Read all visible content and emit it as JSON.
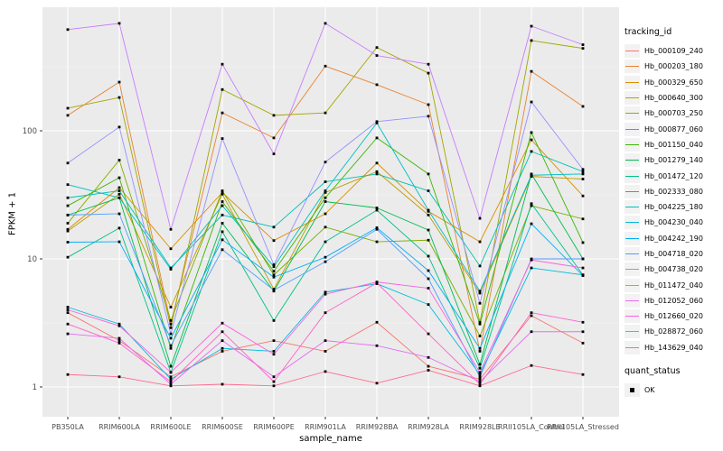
{
  "chart_data": {
    "type": "line",
    "title": "",
    "xlabel": "sample_name",
    "ylabel": "FPKM + 1",
    "y_scale": "log10",
    "y_ticks": [
      1,
      10,
      100
    ],
    "y_minor": [
      3.162,
      31.62,
      316.2
    ],
    "ylim": [
      0.6,
      900
    ],
    "grid": true,
    "legend_position": "right",
    "legend_title": "tracking_id",
    "quant_legend": {
      "title": "quant_status",
      "items": [
        "OK"
      ]
    },
    "categories": [
      "PB350LA",
      "RRIM600LA",
      "RRIM600LE",
      "RRIM600SE",
      "RRIM600PE",
      "RRIM901LA",
      "RRIM928BA",
      "RRIM928LA",
      "RRIM928LE",
      "RRII105LA_Control",
      "RRII105LA_Stressed"
    ],
    "series": [
      {
        "name": "Hb_000109_240",
        "color": "#F8766D",
        "values": [
          3.8,
          2.3,
          1.2,
          1.9,
          2.3,
          1.9,
          3.2,
          1.45,
          1.15,
          3.6,
          2.2
        ]
      },
      {
        "name": "Hb_000203_180",
        "color": "#EA8331",
        "values": [
          132,
          240,
          3.1,
          138,
          88,
          320,
          229,
          160,
          1.9,
          291,
          155
        ]
      },
      {
        "name": "Hb_000329_650",
        "color": "#D89000",
        "values": [
          17,
          36,
          12,
          33,
          13.9,
          22.5,
          56,
          23.5,
          13.6,
          85,
          31
        ]
      },
      {
        "name": "Hb_000640_300",
        "color": "#C09B00",
        "values": [
          16.5,
          32,
          4.2,
          32,
          5.8,
          33,
          48,
          22,
          5.4,
          44,
          42
        ]
      },
      {
        "name": "Hb_000703_250",
        "color": "#A3A500",
        "values": [
          150,
          182,
          2.9,
          210,
          132,
          138,
          447,
          282,
          3.2,
          507,
          440
        ]
      },
      {
        "name": "Hb_000877_060",
        "color": "#7CAE00",
        "values": [
          19,
          59,
          3.3,
          34,
          7.5,
          17.7,
          13.6,
          14,
          2.5,
          26,
          20.5
        ]
      },
      {
        "name": "Hb_001150_040",
        "color": "#39B600",
        "values": [
          26,
          43,
          2.0,
          28,
          8.0,
          30,
          88,
          46,
          3.1,
          97,
          13.4
        ]
      },
      {
        "name": "Hb_001279_140",
        "color": "#00BB4E",
        "values": [
          22,
          30,
          1.45,
          19,
          5.6,
          28,
          25,
          16.8,
          1.5,
          46,
          10
        ]
      },
      {
        "name": "Hb_001472_120",
        "color": "#00C087",
        "values": [
          10.3,
          17.4,
          1.3,
          16.3,
          3.3,
          13.6,
          24,
          10.5,
          1.4,
          27,
          7.5
        ]
      },
      {
        "name": "Hb_002333_080",
        "color": "#00C0B2",
        "values": [
          30,
          34,
          8.5,
          22,
          17.7,
          40,
          46,
          34,
          8.8,
          69,
          48
        ]
      },
      {
        "name": "Hb_004225_180",
        "color": "#00BFC4",
        "values": [
          38,
          30,
          8.3,
          26,
          8.7,
          34,
          115,
          24,
          5.6,
          45,
          46
        ]
      },
      {
        "name": "Hb_004230_040",
        "color": "#00BBDC",
        "values": [
          4.2,
          3.1,
          1.15,
          2.0,
          1.9,
          5.5,
          6.4,
          4.4,
          1.25,
          8.5,
          7.5
        ]
      },
      {
        "name": "Hb_004242_190",
        "color": "#00B0F6",
        "values": [
          13.5,
          13.6,
          2.4,
          14.1,
          7.2,
          10.3,
          17.5,
          8.1,
          2.0,
          18.8,
          7.4
        ]
      },
      {
        "name": "Hb_004718_020",
        "color": "#529EFF",
        "values": [
          22,
          22.5,
          2.1,
          11.8,
          5.7,
          9.5,
          17,
          7.0,
          1.2,
          10,
          10
        ]
      },
      {
        "name": "Hb_004738_020",
        "color": "#9590FF",
        "values": [
          56,
          107,
          2.6,
          87,
          9,
          57,
          118,
          130,
          4.5,
          168,
          50
        ]
      },
      {
        "name": "Hb_011472_040",
        "color": "#C77CFF",
        "values": [
          617,
          690,
          17,
          331,
          66,
          690,
          387,
          331,
          20.7,
          656,
          470
        ]
      },
      {
        "name": "Hb_012052_060",
        "color": "#E76BF3",
        "values": [
          2.6,
          2.4,
          1.05,
          2.3,
          1.2,
          2.3,
          2.1,
          1.7,
          1.1,
          2.7,
          2.7
        ]
      },
      {
        "name": "Hb_012660_020",
        "color": "#F763E0",
        "values": [
          4.0,
          3.0,
          1.3,
          3.15,
          1.8,
          5.3,
          6.6,
          5.9,
          1.3,
          9.8,
          8.5
        ]
      },
      {
        "name": "Hb_028872_060",
        "color": "#FF61C9",
        "values": [
          3.1,
          2.2,
          1.1,
          2.7,
          1.1,
          3.8,
          6.5,
          2.6,
          1.05,
          3.8,
          3.2
        ]
      },
      {
        "name": "Hb_143629_040",
        "color": "#FF6C90",
        "values": [
          1.25,
          1.2,
          1.02,
          1.05,
          1.02,
          1.32,
          1.07,
          1.35,
          1.02,
          1.47,
          1.25
        ]
      }
    ]
  },
  "colors": {
    "panel_bg": "#EBEBEB",
    "grid_major": "#FFFFFF",
    "grid_minor": "#F5F5F5",
    "point": "#000000",
    "tick_mark": "#333333",
    "tick_text": "#4D4D4D",
    "legend_key_bg": "#F2F2F2"
  }
}
